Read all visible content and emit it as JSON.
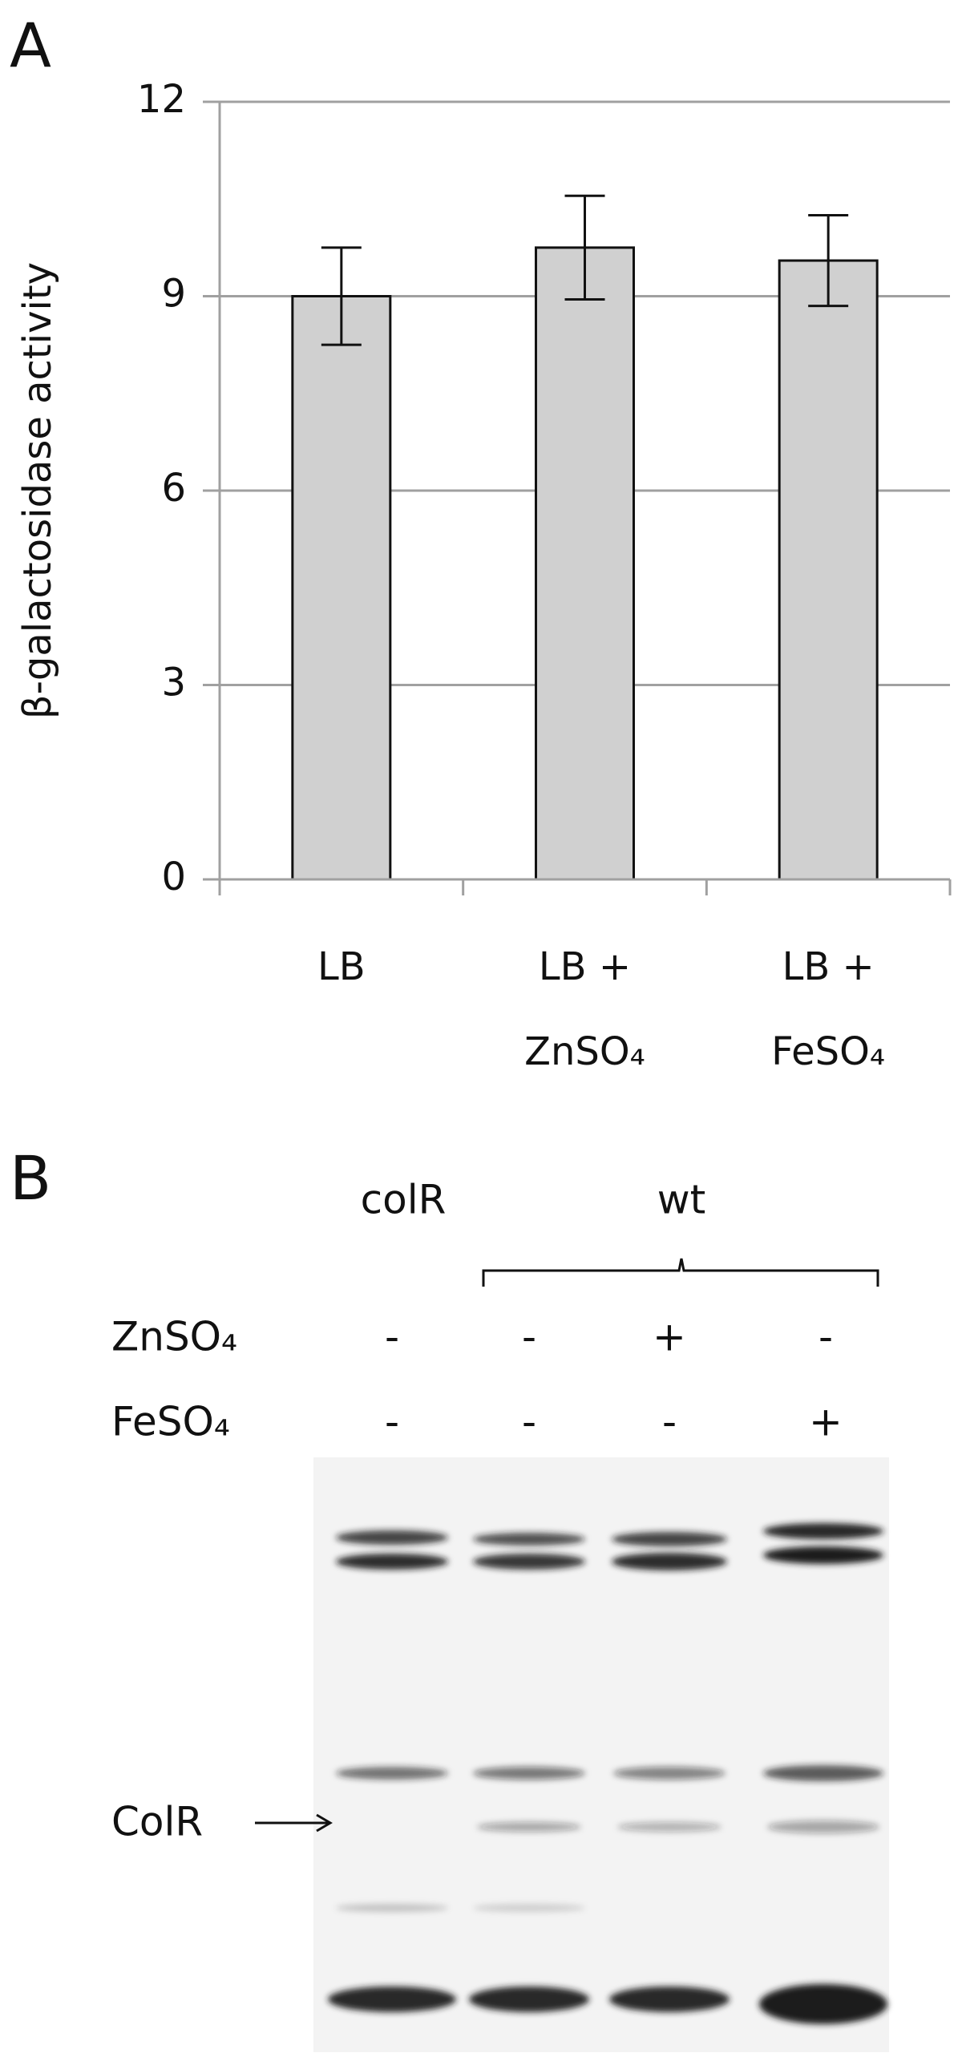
{
  "chart_data": {
    "type": "bar",
    "panel_label": "A",
    "y_label": "β-galactosidase activity",
    "categories": [
      "LB",
      "LB + ZnSO₄",
      "LB + FeSO₄"
    ],
    "values": [
      9.0,
      9.75,
      9.55
    ],
    "errors": [
      0.75,
      0.8,
      0.7
    ],
    "color": "#d0d0d0",
    "edge_color": "#111111",
    "ylim": [
      0,
      12
    ],
    "yticks": [
      0,
      3,
      6,
      9,
      12
    ],
    "grid": true
  },
  "panel_b": {
    "panel_label": "B",
    "groups": [
      "colR",
      "wt"
    ],
    "rows": [
      {
        "name": "ZnSO₄",
        "signs": [
          "-",
          "-",
          "+",
          "-"
        ]
      },
      {
        "name": "FeSO₄",
        "signs": [
          "-",
          "-",
          "-",
          "+"
        ]
      }
    ],
    "band_label": "ColR"
  }
}
